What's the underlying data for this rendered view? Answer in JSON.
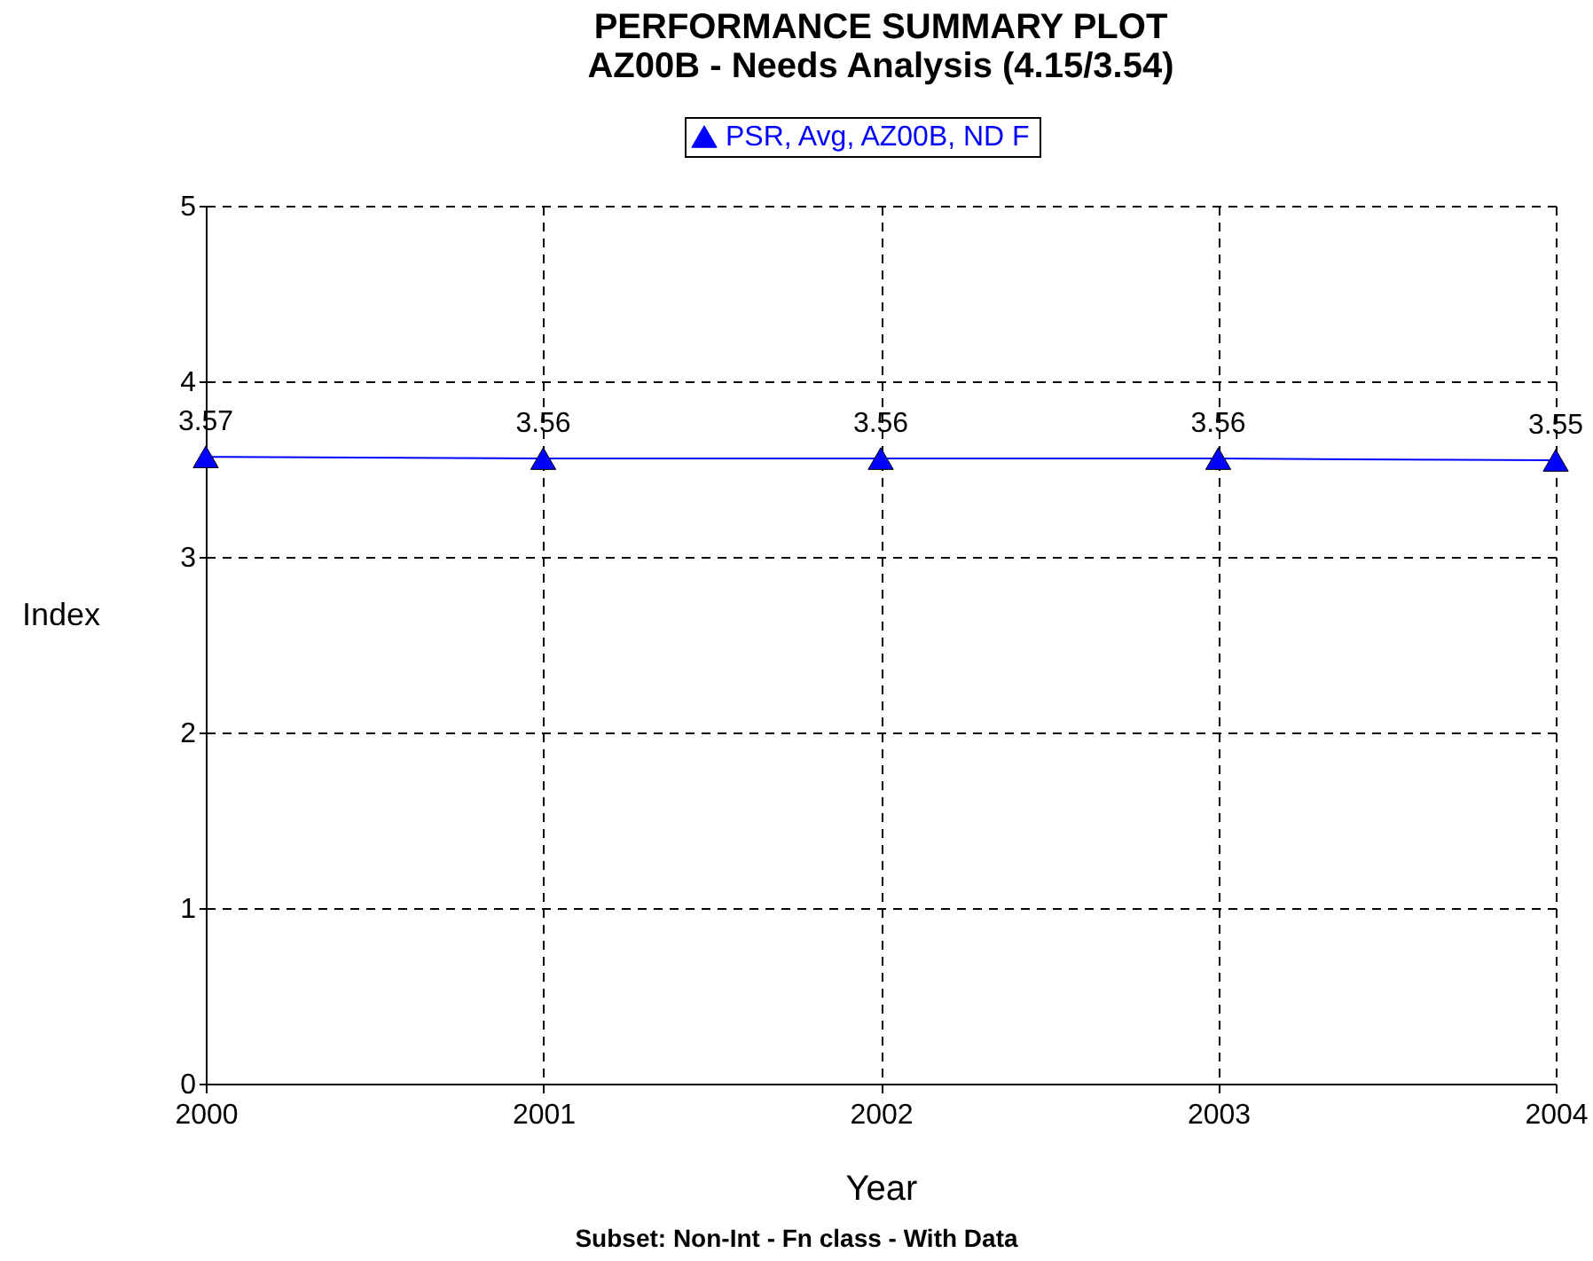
{
  "chart_data": {
    "type": "line",
    "title": "PERFORMANCE SUMMARY PLOT",
    "subtitle": "AZ00B - Needs Analysis (4.15/3.54)",
    "xlabel": "Year",
    "ylabel": "Index",
    "annotations": [
      "Subset: Non-Int - Fn class - With Data"
    ],
    "x": [
      2000,
      2001,
      2002,
      2003,
      2004
    ],
    "series": [
      {
        "name": "PSR, Avg, AZ00B, ND F",
        "color": "#0000ff",
        "values": [
          3.57,
          3.56,
          3.56,
          3.56,
          3.55
        ]
      }
    ],
    "xlim": [
      2000,
      2004
    ],
    "xticks": [
      2000,
      2001,
      2002,
      2003,
      2004
    ],
    "ylim": [
      0,
      5
    ],
    "yticks": [
      0,
      1,
      2,
      3,
      4,
      5
    ],
    "grid": true,
    "legend": "top",
    "marker": "triangle",
    "line_style": "solid",
    "data_labels": true
  }
}
